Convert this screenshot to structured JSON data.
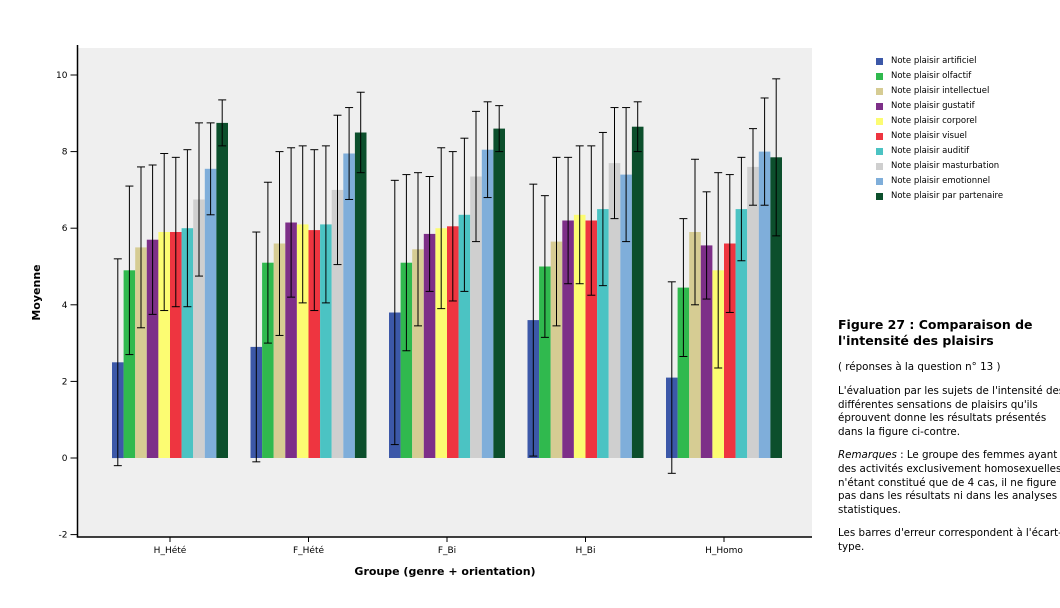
{
  "figure": {
    "caption_title": "Figure 27 : Comparaison de l'intensité des plaisirs",
    "caption_subtitle": "( réponses à la question n° 13 )",
    "paragraph_1": "L'évaluation par les sujets de l'intensité des différentes sensations de plaisirs qu'ils éprouvent donne les résultats présentés dans la figure ci-contre.",
    "remarks_label": "Remarques",
    "remarks_body": " : Le groupe des femmes ayant des activités exclusivement homosexuelles n'étant constitué que de 4 cas, il ne figure pas dans les résultats ni dans les analyses statistiques.",
    "paragraph_3": "Les barres d'erreur correspondent à l'écart-type."
  },
  "chart_data": {
    "type": "bar",
    "title": "",
    "xlabel": "Groupe (genre + orientation)",
    "ylabel": "Moyenne",
    "ylim": [
      -2,
      10
    ],
    "yticks": [
      -2,
      0,
      2,
      4,
      6,
      8,
      10
    ],
    "grid": false,
    "plot_background": "#EFEFEF",
    "legend_position": "top-right",
    "error_bars": "écart-type",
    "categories": [
      "H_Hété",
      "F_Hété",
      "F_Bi",
      "H_Bi",
      "H_Homo"
    ],
    "series": [
      {
        "name": "Note plaisir artificiel",
        "color": "#3C58A8",
        "values": [
          2.5,
          2.9,
          3.8,
          3.6,
          2.1
        ],
        "std": [
          2.7,
          3.0,
          3.45,
          3.55,
          2.5
        ]
      },
      {
        "name": "Note plaisir olfactif",
        "color": "#30B94E",
        "values": [
          4.9,
          5.1,
          5.1,
          5.0,
          4.45
        ],
        "std": [
          2.2,
          2.1,
          2.3,
          1.85,
          1.8
        ]
      },
      {
        "name": "Note plaisir intellectuel",
        "color": "#D6CC93",
        "values": [
          5.5,
          5.6,
          5.45,
          5.65,
          5.9
        ],
        "std": [
          2.1,
          2.4,
          2.0,
          2.2,
          1.9
        ]
      },
      {
        "name": "Note plaisir gustatif",
        "color": "#7D2F88",
        "values": [
          5.7,
          6.15,
          5.85,
          6.2,
          5.55
        ],
        "std": [
          1.95,
          1.95,
          1.5,
          1.65,
          1.4
        ]
      },
      {
        "name": "Note plaisir corporel",
        "color": "#FCFC72",
        "values": [
          5.9,
          6.1,
          6.0,
          6.35,
          4.9
        ],
        "std": [
          2.05,
          2.05,
          2.1,
          1.8,
          2.55
        ]
      },
      {
        "name": "Note plaisir visuel",
        "color": "#EE3540",
        "values": [
          5.9,
          5.95,
          6.05,
          6.2,
          5.6
        ],
        "std": [
          1.95,
          2.1,
          1.95,
          1.95,
          1.8
        ]
      },
      {
        "name": "Note plaisir auditif",
        "color": "#4BC3C3",
        "values": [
          6.0,
          6.1,
          6.35,
          6.5,
          6.5
        ],
        "std": [
          2.05,
          2.05,
          2.0,
          2.0,
          1.35
        ]
      },
      {
        "name": "Note plaisir masturbation",
        "color": "#CFCFCF",
        "values": [
          6.75,
          7.0,
          7.35,
          7.7,
          7.6
        ],
        "std": [
          2.0,
          1.95,
          1.7,
          1.45,
          1.0
        ]
      },
      {
        "name": "Note plaisir emotionnel",
        "color": "#7FAEDA",
        "values": [
          7.55,
          7.95,
          8.05,
          7.4,
          8.0
        ],
        "std": [
          1.2,
          1.2,
          1.25,
          1.75,
          1.4
        ]
      },
      {
        "name": "Note plaisir par partenaire",
        "color": "#0C4F2C",
        "values": [
          8.75,
          8.5,
          8.6,
          8.65,
          7.85
        ],
        "std": [
          0.6,
          1.05,
          0.6,
          0.65,
          2.05
        ]
      }
    ]
  }
}
